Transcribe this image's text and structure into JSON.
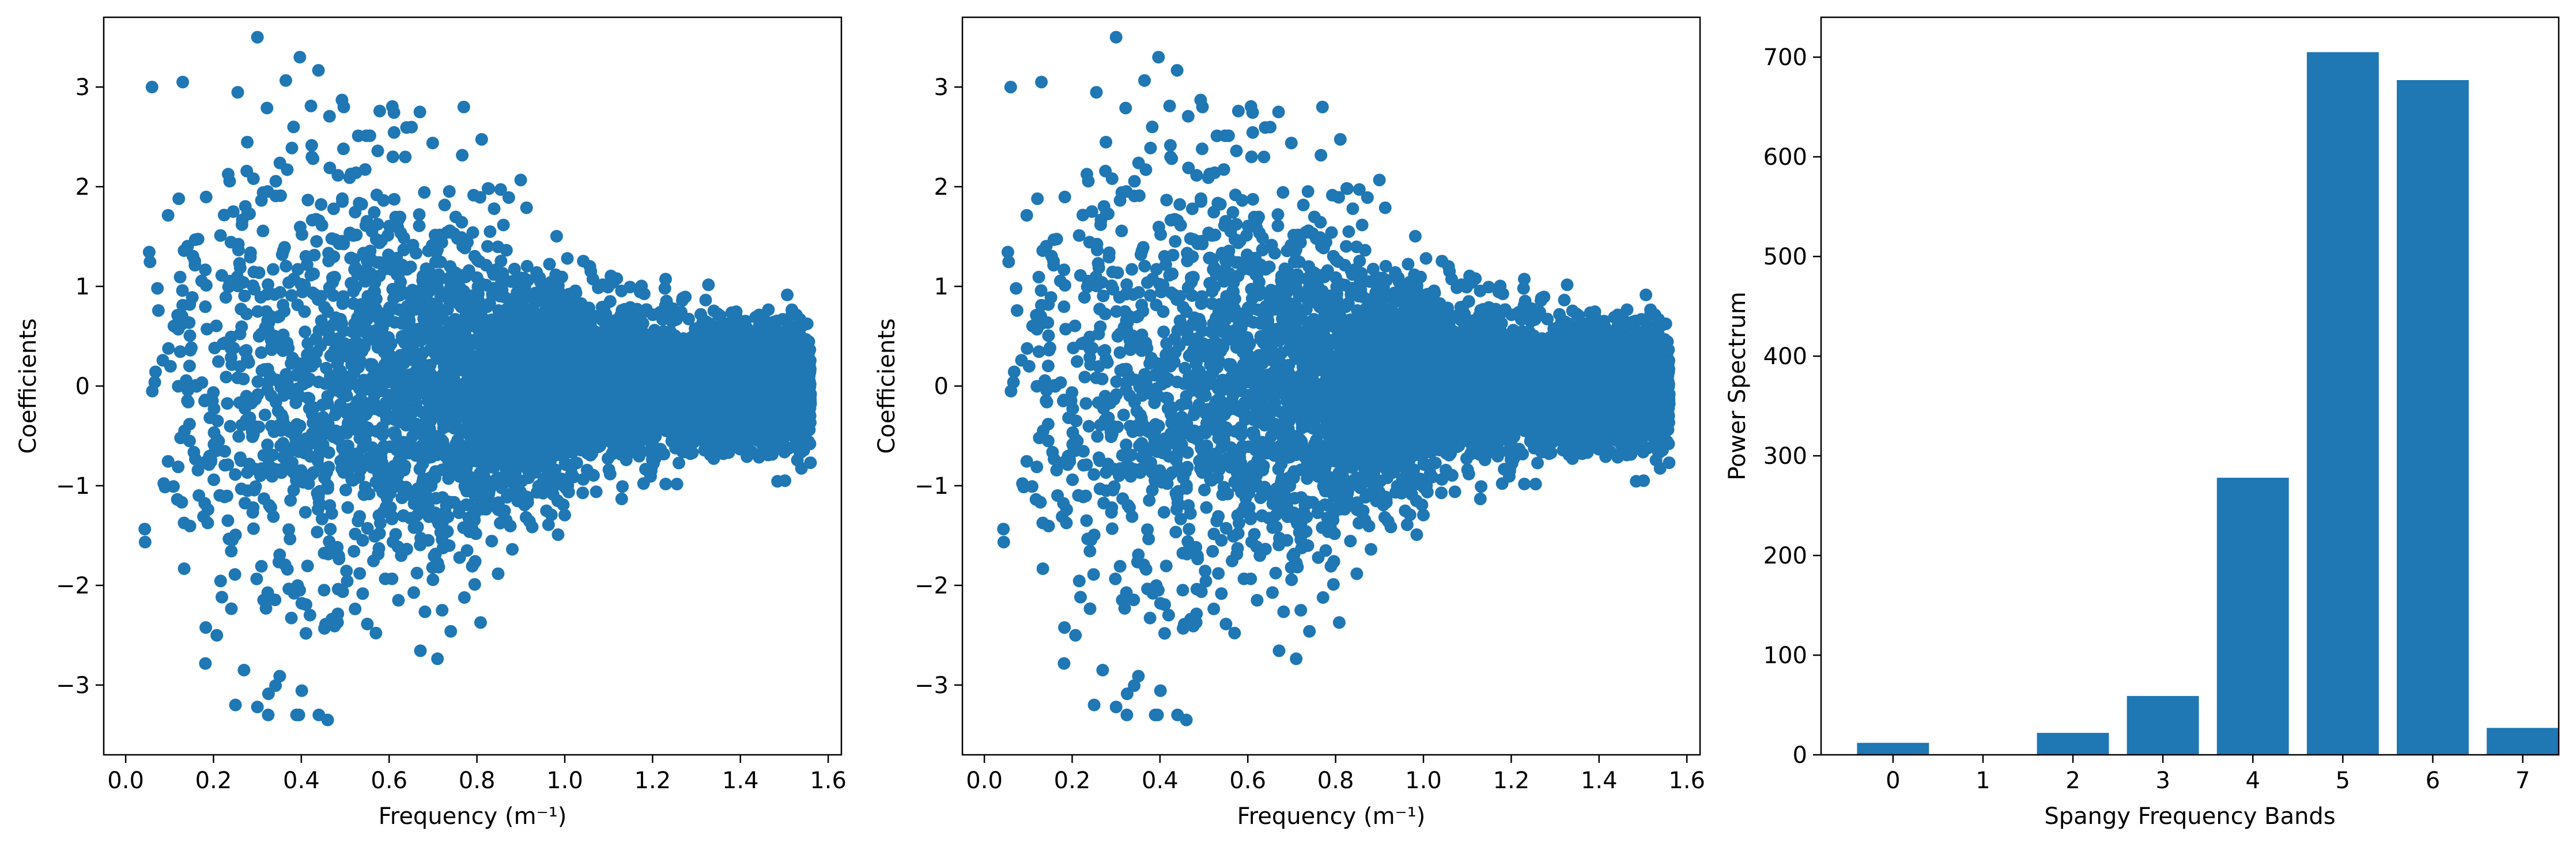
{
  "colors": {
    "series": "#1f77b4",
    "axes": "#000000",
    "background": "#ffffff"
  },
  "chart_data": [
    {
      "type": "scatter",
      "title": "",
      "xlabel": "Frequency (m⁻¹)",
      "ylabel": "Coefficients",
      "xlim": [
        -0.05,
        1.63
      ],
      "ylim": [
        -3.7,
        3.7
      ],
      "xticks": [
        0.0,
        0.2,
        0.4,
        0.6,
        0.8,
        1.0,
        1.2,
        1.4,
        1.6
      ],
      "xtick_labels": [
        "0.0",
        "0.2",
        "0.4",
        "0.6",
        "0.8",
        "1.0",
        "1.2",
        "1.4",
        "1.6"
      ],
      "yticks": [
        -3,
        -2,
        -1,
        0,
        1,
        2,
        3
      ],
      "ytick_labels": [
        "−3",
        "−2",
        "−1",
        "0",
        "1",
        "2",
        "3"
      ],
      "grid": false,
      "point_count": 6000,
      "x_range": [
        0.02,
        1.56
      ],
      "notable_points": [
        {
          "x": 0.3,
          "y": 3.5
        },
        {
          "x": 0.13,
          "y": 3.05
        },
        {
          "x": 0.06,
          "y": 3.0
        },
        {
          "x": 0.77,
          "y": 2.8
        },
        {
          "x": 0.67,
          "y": 2.75
        },
        {
          "x": 0.44,
          "y": -3.3
        },
        {
          "x": 0.46,
          "y": -3.35
        },
        {
          "x": 0.25,
          "y": -3.2
        },
        {
          "x": 0.3,
          "y": -3.22
        }
      ]
    },
    {
      "type": "scatter",
      "title": "",
      "xlabel": "Frequency (m⁻¹)",
      "ylabel": "Coefficients",
      "xlim": [
        -0.05,
        1.63
      ],
      "ylim": [
        -3.7,
        3.7
      ],
      "xticks": [
        0.0,
        0.2,
        0.4,
        0.6,
        0.8,
        1.0,
        1.2,
        1.4,
        1.6
      ],
      "xtick_labels": [
        "0.0",
        "0.2",
        "0.4",
        "0.6",
        "0.8",
        "1.0",
        "1.2",
        "1.4",
        "1.6"
      ],
      "yticks": [
        -3,
        -2,
        -1,
        0,
        1,
        2,
        3
      ],
      "ytick_labels": [
        "−3",
        "−2",
        "−1",
        "0",
        "1",
        "2",
        "3"
      ],
      "grid": false,
      "point_count": 6000,
      "x_range": [
        0.02,
        1.56
      ],
      "notable_points": [
        {
          "x": 0.3,
          "y": 3.5
        },
        {
          "x": 0.13,
          "y": 3.05
        },
        {
          "x": 0.06,
          "y": 3.0
        },
        {
          "x": 0.77,
          "y": 2.8
        },
        {
          "x": 0.67,
          "y": 2.75
        },
        {
          "x": 0.44,
          "y": -3.3
        },
        {
          "x": 0.46,
          "y": -3.35
        },
        {
          "x": 0.25,
          "y": -3.2
        },
        {
          "x": 0.3,
          "y": -3.22
        }
      ]
    },
    {
      "type": "bar",
      "title": "",
      "xlabel": "Spangy Frequency Bands",
      "ylabel": "Power Spectrum",
      "categories": [
        "0",
        "1",
        "2",
        "3",
        "4",
        "5",
        "6",
        "7"
      ],
      "values": [
        12,
        0,
        22,
        59,
        278,
        705,
        677,
        27
      ],
      "xlim": [
        -0.8,
        7.4
      ],
      "ylim": [
        0,
        740
      ],
      "yticks": [
        0,
        100,
        200,
        300,
        400,
        500,
        600,
        700
      ],
      "ytick_labels": [
        "0",
        "100",
        "200",
        "300",
        "400",
        "500",
        "600",
        "700"
      ],
      "grid": false
    }
  ]
}
